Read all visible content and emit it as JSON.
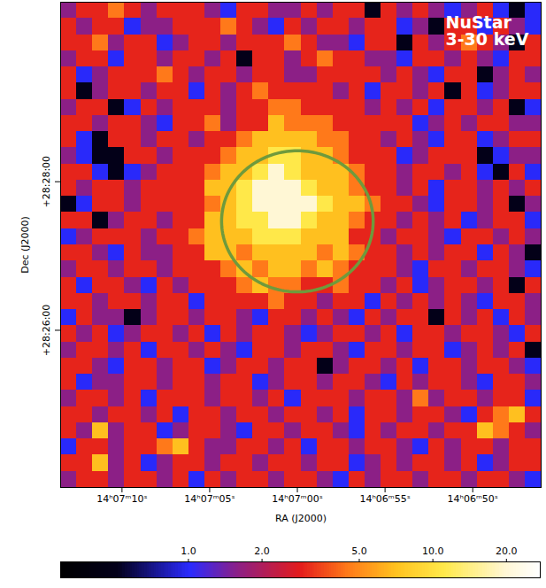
{
  "chart_data": {
    "type": "heatmap",
    "title": "NuStar 3-30 keV",
    "xlabel": "RA (J2000)",
    "ylabel": "Dec (J2000)",
    "xlim": [
      50833.5,
      50806.1
    ],
    "ylim": [
      102233,
      102625
    ],
    "xticks": [
      {
        "value": 50830,
        "label": "14ʰ07ᵐ10ˢ"
      },
      {
        "value": 50825,
        "label": "14ʰ07ᵐ05ˢ"
      },
      {
        "value": 50820,
        "label": "14ʰ07ᵐ00ˢ"
      },
      {
        "value": 50815,
        "label": "14ʰ06ᵐ55ˢ"
      },
      {
        "value": 50810,
        "label": "14ʰ06ᵐ50ˢ"
      }
    ],
    "yticks": [
      {
        "value": 102480,
        "label": "+28:28:00"
      },
      {
        "value": 102360,
        "label": "+28:26:00"
      }
    ],
    "region": {
      "ra": 50820,
      "dec": 102448,
      "radius_arcsec": 57,
      "color": "#6f9a3c"
    },
    "colorbar": {
      "range": [
        0.3,
        27.5
      ],
      "log": true,
      "ticks": [
        {
          "value": 1,
          "label": "1.0"
        },
        {
          "value": 2,
          "label": "2.0"
        },
        {
          "value": 5,
          "label": "5.0"
        },
        {
          "value": 10,
          "label": "10.0"
        },
        {
          "value": 20,
          "label": "20.0"
        }
      ]
    },
    "cells": [
      [
        1.6,
        3,
        3,
        4.5,
        3,
        1.6,
        3,
        3,
        3,
        1.6,
        1,
        3,
        3,
        1.6,
        1.6,
        3,
        1.6,
        3,
        3,
        0.5,
        3,
        1.6,
        3,
        1.6,
        1,
        1.6,
        3,
        1,
        0.5,
        1
      ],
      [
        3,
        1.6,
        3,
        3,
        1,
        1.6,
        1.6,
        3,
        3,
        3,
        4.5,
        3,
        1.6,
        1,
        3,
        1.6,
        3,
        3,
        1.6,
        3,
        3,
        1,
        1.6,
        0.5,
        3,
        3,
        1,
        3,
        1.6,
        1
      ],
      [
        3,
        3,
        4.5,
        1.6,
        3,
        3,
        1,
        1.6,
        3,
        3,
        1.6,
        3,
        3,
        3,
        4.5,
        3,
        1.6,
        1.6,
        1,
        3,
        3,
        0.5,
        3,
        1.6,
        3,
        4.5,
        3,
        1.6,
        0.5,
        3
      ],
      [
        1.6,
        3,
        3,
        1,
        3,
        3,
        1.6,
        3,
        3,
        1.6,
        3,
        0.5,
        3,
        3,
        1.6,
        3,
        4.5,
        3,
        3,
        1.6,
        1.6,
        1,
        3,
        3,
        1.6,
        3,
        1.6,
        1,
        3,
        3
      ],
      [
        3,
        1,
        1.6,
        3,
        3,
        3,
        4.5,
        3,
        1.6,
        3,
        3,
        1.6,
        3,
        3,
        1.6,
        1.6,
        3,
        3,
        3,
        3,
        1.6,
        3,
        1.6,
        1,
        3,
        3,
        0.5,
        1.6,
        3,
        1.6
      ],
      [
        3,
        0.5,
        1.6,
        3,
        3,
        1.6,
        3,
        3,
        1,
        3,
        1.6,
        3,
        4.5,
        3,
        3,
        3,
        3,
        1.6,
        3,
        1,
        3,
        3,
        1.6,
        3,
        0.5,
        3,
        1,
        1.6,
        3,
        3
      ],
      [
        1.6,
        3,
        3,
        0.5,
        1,
        3,
        1.6,
        3,
        3,
        3,
        1.6,
        3,
        3,
        4.5,
        4.5,
        3,
        3,
        3,
        3,
        1.6,
        3,
        1.6,
        3,
        1,
        3,
        3,
        1.6,
        3,
        0.5,
        1
      ],
      [
        3,
        3,
        1.6,
        3,
        3,
        1.6,
        1,
        3,
        3,
        4.5,
        1.6,
        3,
        3,
        7,
        4.5,
        4.5,
        4.5,
        3,
        3,
        3,
        3,
        3,
        1,
        1.6,
        3,
        1.6,
        3,
        3,
        1.6,
        1.6
      ],
      [
        3,
        1,
        0.5,
        3,
        3,
        1.6,
        3,
        3,
        1.6,
        3,
        3,
        4.5,
        7,
        7,
        7,
        7,
        4.5,
        4.5,
        3,
        3,
        1.6,
        3,
        1.6,
        1,
        3,
        3,
        1,
        1.6,
        3,
        3
      ],
      [
        1.6,
        1,
        0.5,
        0.5,
        3,
        3,
        1.6,
        3,
        3,
        3,
        4.5,
        7,
        7,
        11,
        11,
        7,
        7,
        4.5,
        3,
        3,
        3,
        1,
        1.6,
        3,
        3,
        3,
        0.5,
        1,
        1.6,
        1.6
      ],
      [
        3,
        3,
        1,
        0.5,
        1,
        1.6,
        3,
        3,
        3,
        4.5,
        7,
        7,
        11,
        20,
        11,
        7,
        7,
        7,
        4.5,
        3,
        3,
        1.6,
        3,
        3,
        1.6,
        3,
        1,
        0.5,
        3,
        1
      ],
      [
        3,
        1.6,
        3,
        3,
        1.6,
        3,
        3,
        3,
        3,
        7,
        7,
        11,
        20,
        20,
        20,
        11,
        7,
        7,
        4.5,
        3,
        3,
        1.6,
        3,
        1,
        3,
        3,
        1.6,
        3,
        1.6,
        3
      ],
      [
        0.5,
        1,
        3,
        3,
        1.6,
        3,
        3,
        3,
        3,
        4.5,
        7,
        11,
        20,
        20,
        20,
        20,
        11,
        7,
        7,
        4.5,
        3,
        3,
        1.6,
        1,
        3,
        3,
        1.6,
        3,
        0.5,
        1.6
      ],
      [
        3,
        3,
        0.5,
        1.6,
        3,
        3,
        1.6,
        3,
        3,
        7,
        7,
        11,
        11,
        20,
        20,
        11,
        7,
        7,
        4.5,
        3,
        3,
        1.6,
        3,
        1.6,
        3,
        1,
        1.6,
        3,
        3,
        1
      ],
      [
        1,
        1.6,
        3,
        3,
        3,
        1.6,
        3,
        3,
        4.5,
        7,
        7,
        7,
        11,
        11,
        11,
        7,
        7,
        7,
        3,
        3,
        1.6,
        3,
        3,
        1.6,
        1,
        3,
        3,
        1.6,
        3,
        1.6
      ],
      [
        3,
        3,
        1.6,
        1,
        3,
        1.6,
        1.6,
        3,
        3,
        7,
        7,
        4.5,
        7,
        7,
        7,
        7,
        4.5,
        7,
        4.5,
        3,
        3,
        1.6,
        3,
        1.6,
        3,
        3,
        1,
        3,
        1.6,
        0.5
      ],
      [
        1.6,
        3,
        3,
        1.6,
        3,
        3,
        1.6,
        3,
        3,
        3,
        4.5,
        7,
        4.5,
        7,
        7,
        4.5,
        7,
        4.5,
        3,
        3,
        3,
        1.6,
        1,
        3,
        3,
        1.6,
        3,
        3,
        1.6,
        1
      ],
      [
        3,
        1,
        3,
        3,
        1.6,
        1,
        3,
        1.6,
        3,
        3,
        3,
        4.5,
        7,
        4.5,
        4.5,
        3,
        3,
        4.5,
        3,
        3,
        1.6,
        3,
        1,
        1.6,
        3,
        3,
        1.6,
        3,
        0.5,
        3
      ],
      [
        3,
        3,
        1.6,
        3,
        3,
        1.6,
        3,
        3,
        1,
        3,
        3,
        3,
        3,
        4.5,
        3,
        3,
        1.6,
        3,
        3,
        1,
        3,
        1.6,
        3,
        1.6,
        3,
        1.6,
        1,
        3,
        3,
        1.6
      ],
      [
        1,
        3,
        1.6,
        1.6,
        0.5,
        1.6,
        3,
        3,
        1.6,
        3,
        3,
        1.6,
        1,
        3,
        3,
        1.6,
        3,
        1.6,
        1,
        3,
        1.6,
        3,
        3,
        0.5,
        3,
        1.6,
        3,
        1,
        3,
        1.6
      ],
      [
        3,
        1.6,
        3,
        1,
        1.6,
        3,
        3,
        1.6,
        3,
        1,
        3,
        1.6,
        3,
        3,
        1.6,
        1,
        1.6,
        3,
        3,
        1.6,
        3,
        1,
        3,
        3,
        1.6,
        3,
        3,
        1.6,
        1,
        3
      ],
      [
        1.6,
        3,
        3,
        1.6,
        3,
        1,
        3,
        3,
        1.6,
        3,
        1.6,
        1,
        3,
        3,
        1.6,
        3,
        3,
        1.6,
        1,
        3,
        3,
        1.6,
        3,
        3,
        1,
        1.6,
        3,
        1.6,
        3,
        0.5
      ],
      [
        3,
        3,
        1.6,
        1,
        3,
        3,
        1.6,
        3,
        3,
        1,
        1.6,
        3,
        3,
        1.6,
        3,
        3,
        0.5,
        1.6,
        3,
        3,
        1.6,
        3,
        1,
        3,
        3,
        1.6,
        3,
        3,
        1.6,
        1
      ],
      [
        3,
        1,
        1.6,
        1.6,
        3,
        3,
        1.6,
        3,
        3,
        1.6,
        3,
        3,
        1,
        1.6,
        3,
        3,
        1.6,
        3,
        3,
        1.6,
        1,
        3,
        1.6,
        3,
        3,
        1.6,
        1,
        3,
        3,
        1.6
      ],
      [
        1.6,
        3,
        3,
        1.6,
        3,
        1,
        3,
        3,
        3,
        1.6,
        3,
        3,
        1.6,
        3,
        1,
        3,
        3,
        3,
        1.6,
        3,
        3,
        1.6,
        4.5,
        1.6,
        3,
        3,
        1.6,
        3,
        3,
        1
      ],
      [
        3,
        3,
        1.6,
        3,
        3,
        1.6,
        3,
        1,
        3,
        3,
        1.6,
        3,
        3,
        1.6,
        3,
        3,
        1.6,
        3,
        1,
        3,
        3,
        1.6,
        3,
        3,
        1.6,
        1,
        3,
        4.5,
        7,
        3
      ],
      [
        3,
        1.6,
        7,
        1.6,
        3,
        3,
        1,
        1.6,
        3,
        3,
        1.6,
        1,
        3,
        3,
        1.6,
        3,
        3,
        1.6,
        1,
        3,
        1.6,
        3,
        3,
        1.6,
        3,
        3,
        7,
        4.5,
        3,
        1.6
      ],
      [
        1,
        3,
        3,
        1.6,
        3,
        3,
        4.5,
        7,
        3,
        1.6,
        1.6,
        3,
        3,
        1.6,
        3,
        1,
        3,
        3,
        1.6,
        3,
        3,
        1.6,
        1,
        3,
        1.6,
        3,
        3,
        1.6,
        3,
        3
      ],
      [
        3,
        3,
        7,
        1.6,
        3,
        1,
        1.6,
        3,
        3,
        1.6,
        3,
        3,
        1.6,
        3,
        3,
        1.6,
        3,
        3,
        1,
        1.6,
        3,
        1.6,
        3,
        3,
        1.6,
        3,
        1,
        1.6,
        3,
        3
      ],
      [
        1.6,
        3,
        3,
        1.6,
        3,
        3,
        1.6,
        3,
        1,
        3,
        1.6,
        3,
        3,
        1.6,
        3,
        3,
        1.6,
        1,
        3,
        1.6,
        3,
        3,
        1.6,
        3,
        3,
        1.6,
        3,
        3,
        1.6,
        1
      ]
    ]
  }
}
